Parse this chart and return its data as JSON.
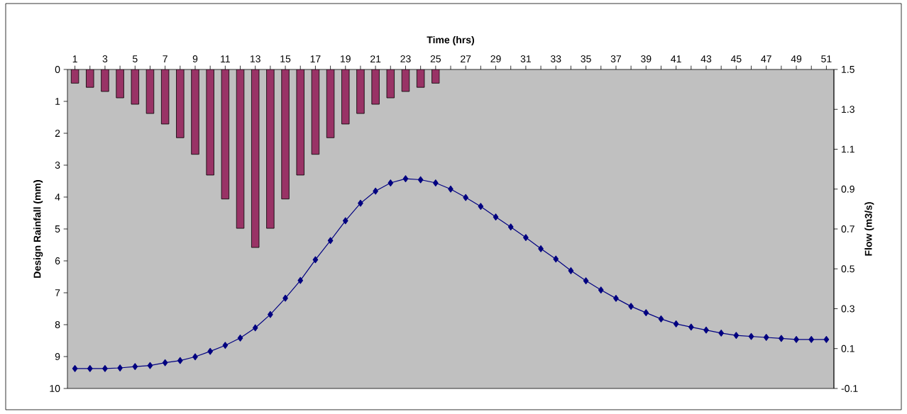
{
  "chart_data": {
    "type": "bar",
    "xlabel": "Time (hrs)",
    "ylabel": "Design Rainfall (mm)",
    "y2label": "Flow (m3/s)",
    "categories": [
      "1",
      null,
      "3",
      null,
      "5",
      null,
      "7",
      null,
      "9",
      null,
      "11",
      null,
      "13",
      null,
      "15",
      null,
      "17",
      null,
      "19",
      null,
      "21",
      null,
      "23",
      null,
      "25",
      null,
      "27",
      null,
      "29",
      null,
      "31",
      null,
      "33",
      null,
      "35",
      null,
      "37",
      null,
      "39",
      null,
      "41",
      null,
      "43",
      null,
      "45",
      null,
      "47",
      null,
      "49",
      null,
      "51"
    ],
    "series": [
      {
        "axis": "y",
        "color": "#993366",
        "values": [
          0.43,
          0.56,
          0.69,
          0.89,
          1.09,
          1.38,
          1.71,
          2.14,
          2.66,
          3.31,
          4.06,
          4.98,
          5.58,
          4.98,
          4.06,
          3.31,
          2.66,
          2.14,
          1.71,
          1.38,
          1.09,
          0.89,
          0.69,
          0.56,
          0.43,
          null,
          null,
          null,
          null,
          null,
          null,
          null,
          null,
          null,
          null,
          null,
          null,
          null,
          null,
          null,
          null,
          null,
          null,
          null,
          null,
          null,
          null,
          null,
          null,
          null,
          null
        ]
      },
      {
        "type": "line",
        "axis": "y2",
        "color": "#000080",
        "values": [
          0.0,
          0.0,
          0.0,
          0.003,
          0.01,
          0.015,
          0.029,
          0.04,
          0.059,
          0.086,
          0.116,
          0.153,
          0.204,
          0.271,
          0.353,
          0.442,
          0.546,
          0.642,
          0.741,
          0.829,
          0.89,
          0.931,
          0.952,
          0.947,
          0.931,
          0.9,
          0.858,
          0.813,
          0.76,
          0.71,
          0.657,
          0.601,
          0.549,
          0.491,
          0.44,
          0.394,
          0.352,
          0.312,
          0.28,
          0.249,
          0.224,
          0.208,
          0.193,
          0.178,
          0.166,
          0.161,
          0.156,
          0.151,
          0.146,
          0.146,
          0.146
        ]
      }
    ],
    "ylim": [
      10,
      0
    ],
    "yticks": [
      0,
      1,
      2,
      3,
      4,
      5,
      6,
      7,
      8,
      9,
      10
    ],
    "y2lim": [
      -0.1,
      1.5
    ],
    "y2ticks": [
      -0.1,
      0.1,
      0.3,
      0.5,
      0.7,
      0.9,
      1.1,
      1.3,
      1.5
    ],
    "marker": "diamond",
    "line_style": "solid",
    "grid": false
  }
}
